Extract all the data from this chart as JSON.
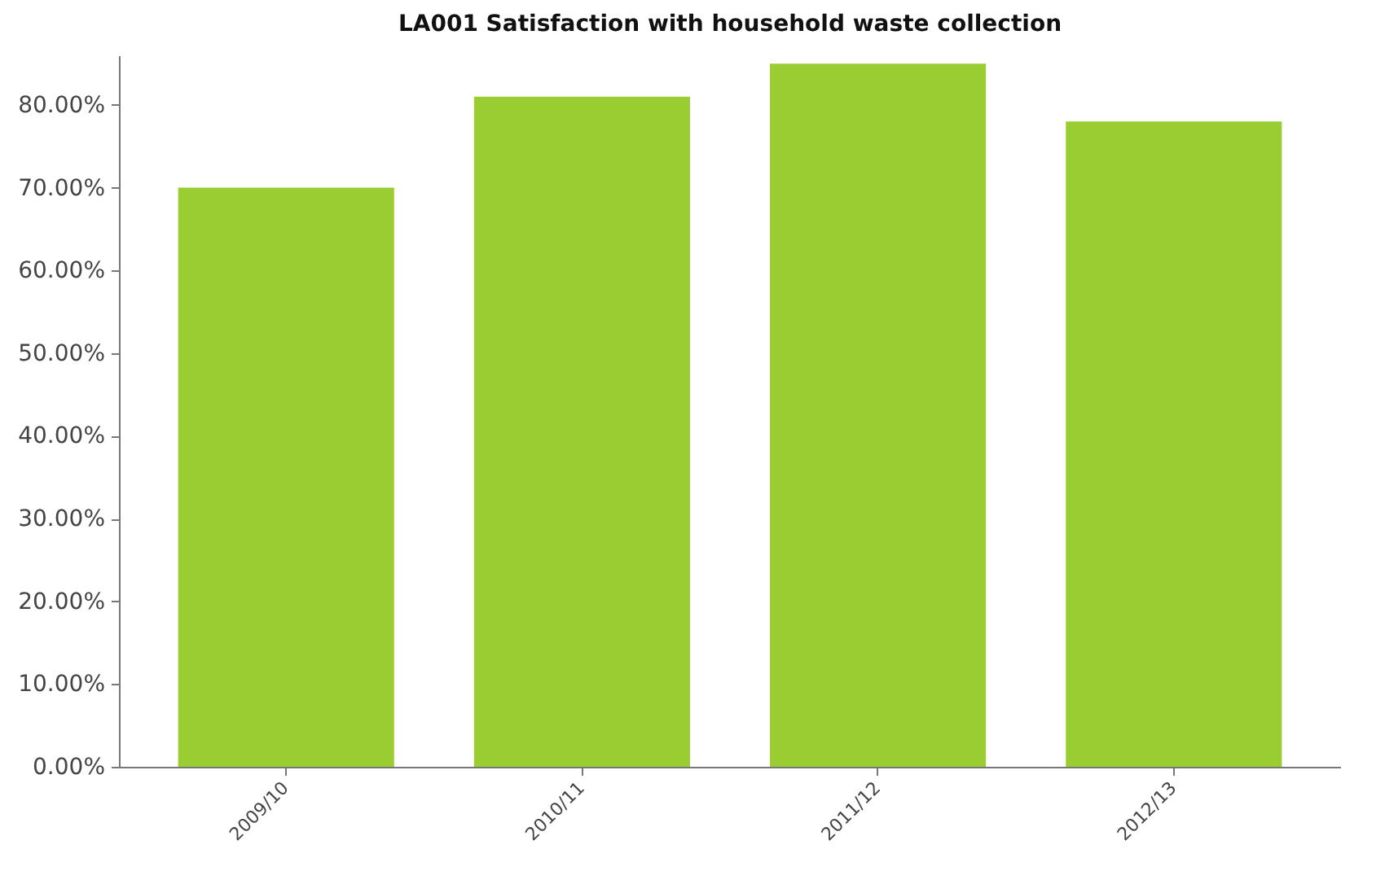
{
  "chart_data": {
    "type": "bar",
    "title": "LA001 Satisfaction with household waste collection",
    "categories": [
      "2009/10",
      "2010/11",
      "2011/12",
      "2012/13"
    ],
    "values": [
      70,
      81,
      85,
      78
    ],
    "color": "#9acd32",
    "ylim": [
      0,
      86
    ],
    "yticks": [
      {
        "value": 0,
        "label": "0.00%"
      },
      {
        "value": 10,
        "label": "10.00%"
      },
      {
        "value": 20,
        "label": "20.00%"
      },
      {
        "value": 30,
        "label": "30.00%"
      },
      {
        "value": 40,
        "label": "40.00%"
      },
      {
        "value": 50,
        "label": "50.00%"
      },
      {
        "value": 60,
        "label": "60.00%"
      },
      {
        "value": 70,
        "label": "70.00%"
      },
      {
        "value": 80,
        "label": "80.00%"
      }
    ],
    "grid": false
  }
}
